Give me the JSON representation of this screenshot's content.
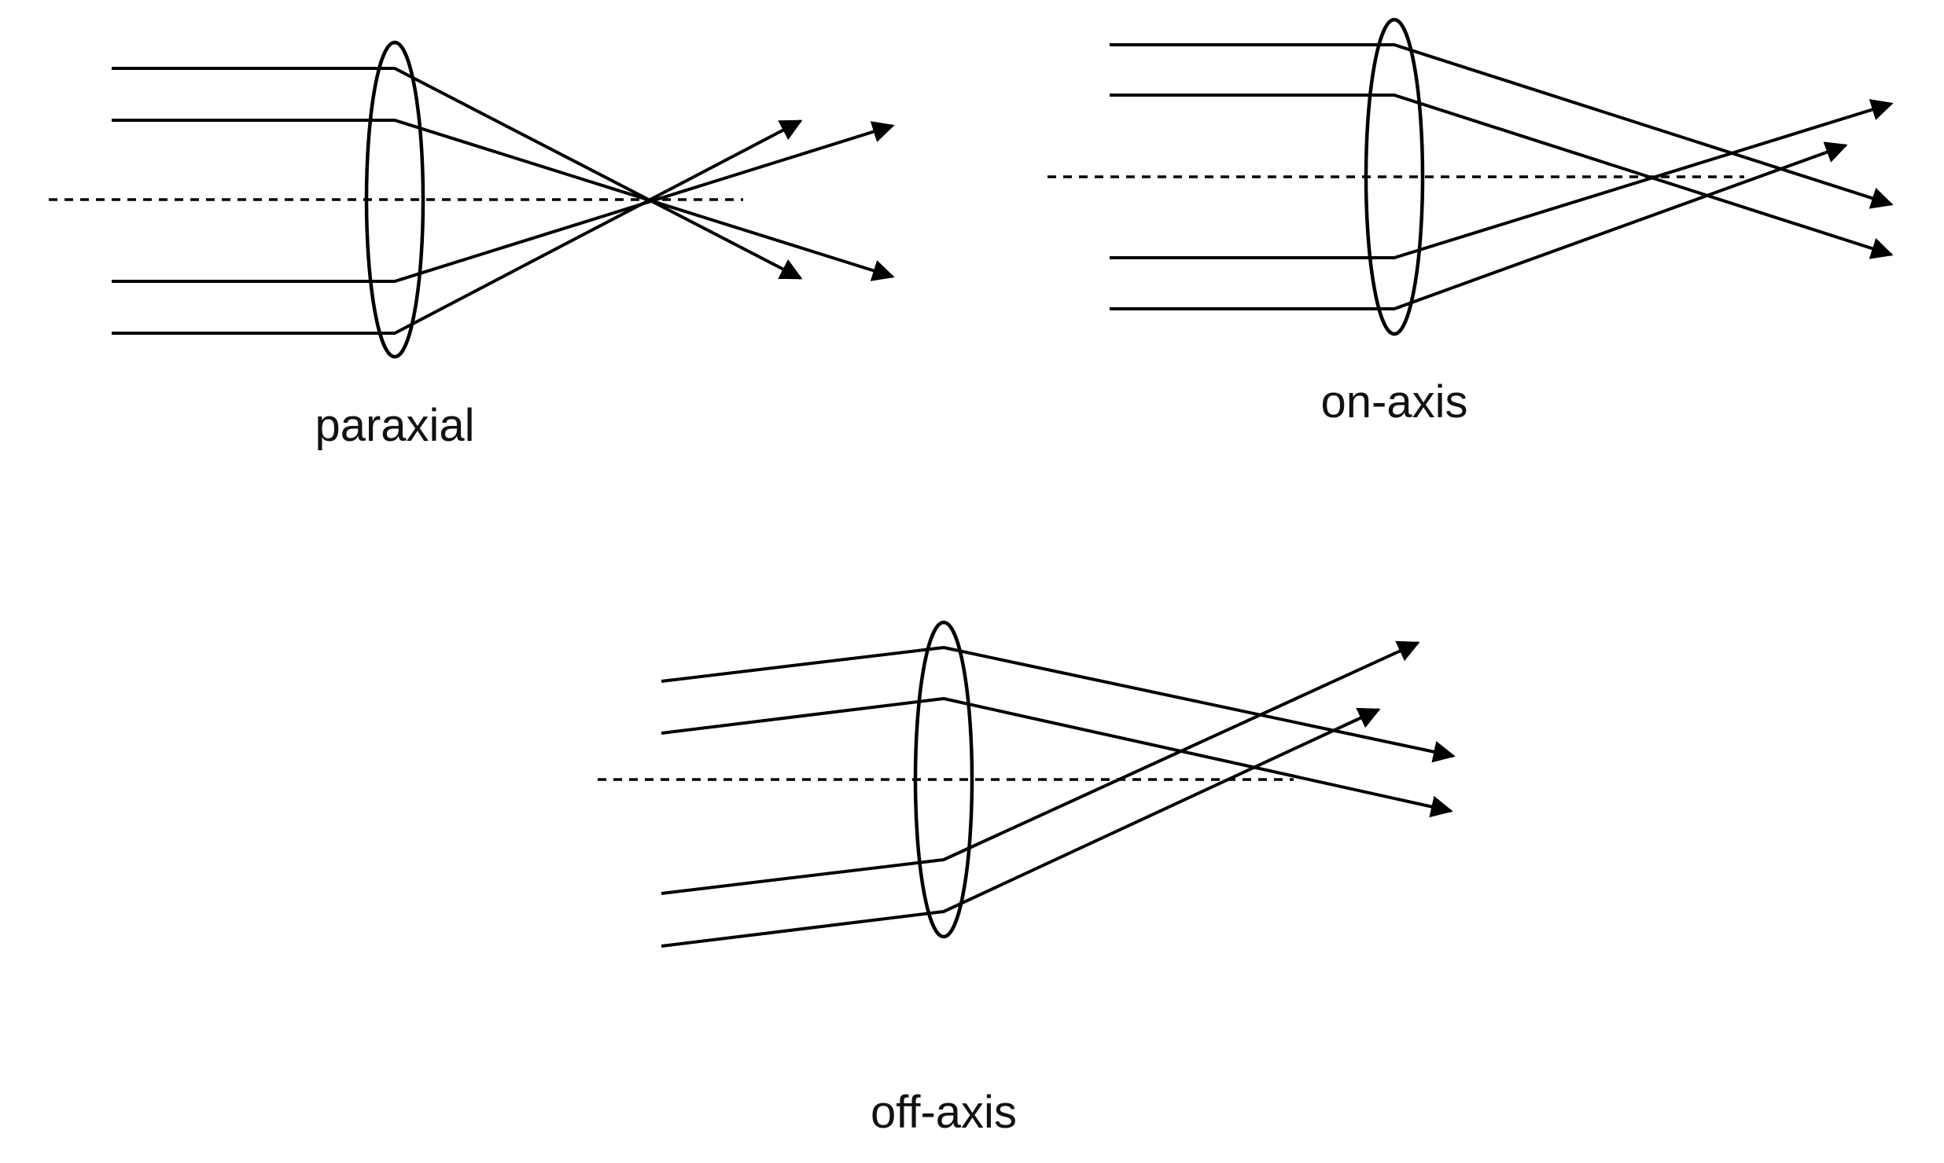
{
  "labels": {
    "paraxial": "paraxial",
    "on_axis": "on-axis",
    "off_axis": "off-axis"
  },
  "colors": {
    "ink": "#000000",
    "background": "#ffffff"
  }
}
